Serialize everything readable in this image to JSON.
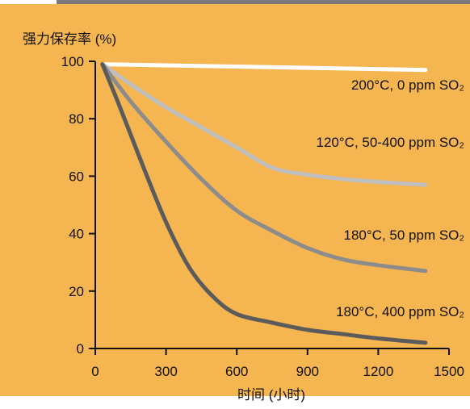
{
  "chart_data": {
    "type": "line",
    "xlabel": "时间 (小时)",
    "ylabel": "强力保存率 (%)",
    "xlim": [
      0,
      1500
    ],
    "ylim": [
      0,
      100
    ],
    "x_ticks": [
      0,
      300,
      600,
      900,
      1200,
      1500
    ],
    "y_ticks": [
      0,
      20,
      40,
      60,
      80,
      100
    ],
    "background_color": "#F5B550",
    "series": [
      {
        "name": "200°C, 0 ppm SO₂",
        "color": "#ffffff",
        "x": [
          30,
          1400
        ],
        "y": [
          99,
          97
        ]
      },
      {
        "name": "120°C, 50-400 ppm SO₂",
        "color": "#bfbfbf",
        "x": [
          30,
          150,
          300,
          450,
          600,
          750,
          900,
          1050,
          1200,
          1400
        ],
        "y": [
          99,
          92,
          84,
          77,
          70,
          63,
          60.5,
          59,
          58,
          57
        ]
      },
      {
        "name": "180°C, 50 ppm SO₂",
        "color": "#8c8c8c",
        "x": [
          30,
          150,
          300,
          450,
          600,
          750,
          900,
          1050,
          1200,
          1400
        ],
        "y": [
          99,
          86,
          72,
          59,
          48,
          41,
          35,
          31,
          29,
          27
        ]
      },
      {
        "name": "180°C, 400 ppm SO₂",
        "color": "#5b5b5b",
        "x": [
          30,
          100,
          200,
          300,
          400,
          500,
          600,
          750,
          900,
          1050,
          1200,
          1400
        ],
        "y": [
          99,
          85,
          64,
          44,
          28,
          18,
          12,
          9,
          6.5,
          5,
          3.5,
          2
        ]
      }
    ],
    "grid": false,
    "legend": "inline labels near lines"
  }
}
